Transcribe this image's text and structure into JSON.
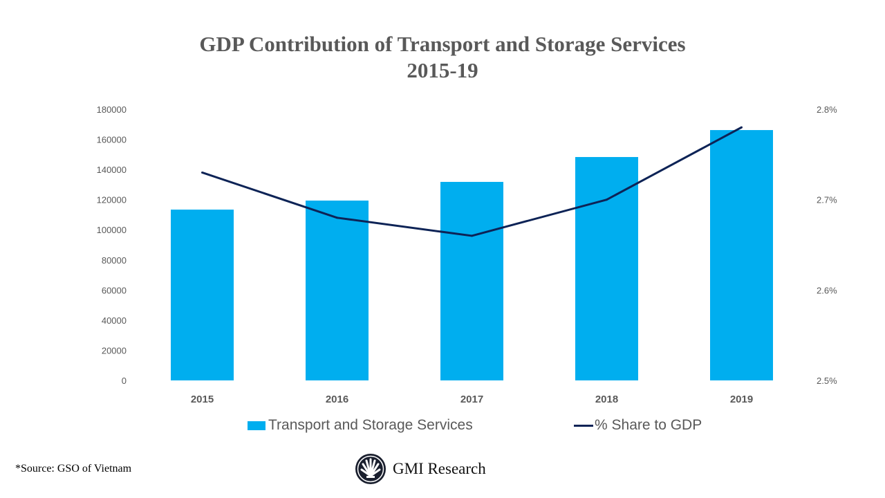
{
  "chart_data": {
    "type": "bar",
    "title": "GDP Contribution of Transport and Storage Services",
    "subtitle": "2015-19",
    "categories": [
      "2015",
      "2016",
      "2017",
      "2018",
      "2019"
    ],
    "series": [
      {
        "name": "Transport and Storage Services",
        "type": "bar",
        "axis": "left",
        "values": [
          113400,
          119400,
          131800,
          148300,
          166200
        ]
      },
      {
        "name": "% Share to GDP",
        "type": "line",
        "axis": "right",
        "values": [
          2.73,
          2.68,
          2.66,
          2.7,
          2.78
        ]
      }
    ],
    "ylim": [
      0,
      180000
    ],
    "y_ticks": [
      "0",
      "20000",
      "40000",
      "60000",
      "80000",
      "100000",
      "120000",
      "140000",
      "160000",
      "180000"
    ],
    "y2lim": [
      2.5,
      2.8
    ],
    "y2_ticks": [
      "2.5%",
      "2.6%",
      "2.7%",
      "2.8%"
    ],
    "grid": false,
    "legend_placement": "bottom",
    "colors": {
      "bar": "#00AEEF",
      "line": "#0D2356"
    }
  },
  "source": "*Source:  GSO of Vietnam",
  "logo_text": "GMI Research"
}
